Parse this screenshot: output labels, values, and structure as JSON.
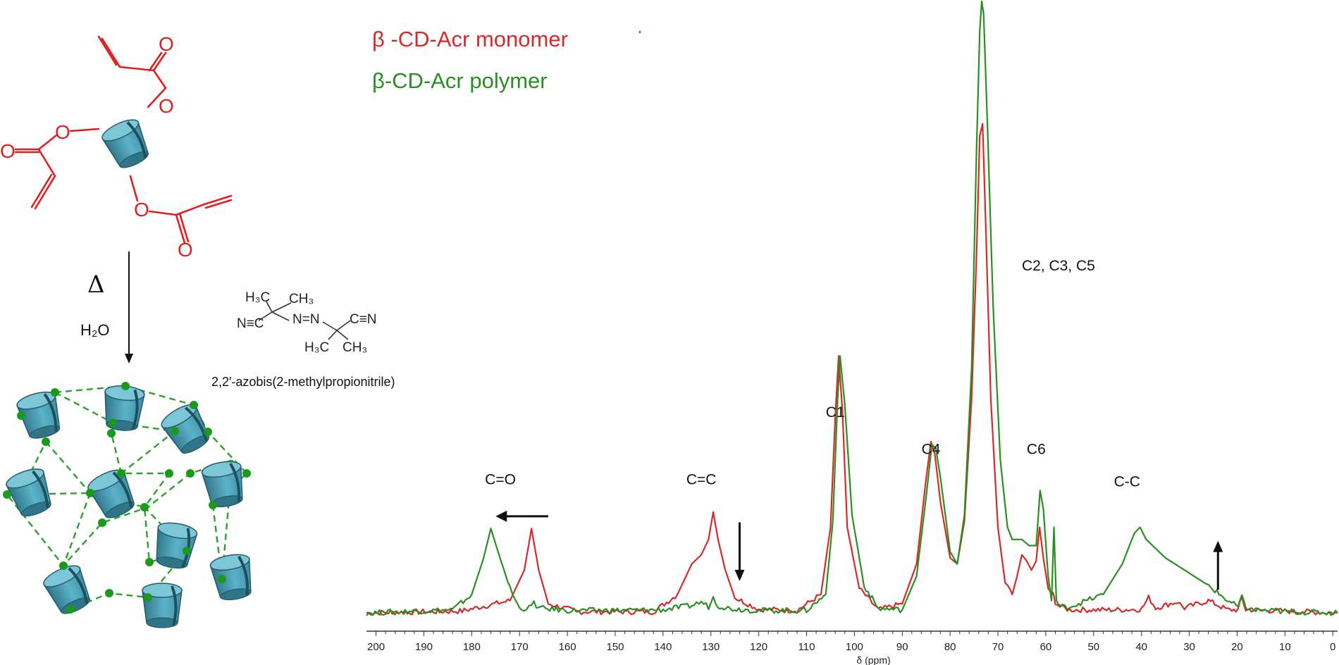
{
  "scheme": {
    "heat_symbol": "Δ",
    "solvent": "H₂O",
    "initiator_name": "2,2′-azobis(2-methylpropionitrile)",
    "initiator_formula": {
      "top_left": "H₃C",
      "top_right": "CH₃",
      "left": "N≡C",
      "azo": "N=N",
      "right": "C≡N",
      "bottom_left": "H₃C",
      "bottom_right": "CH₃"
    },
    "colors": {
      "monomer_structure": "#e02020",
      "cyclodextrin": "#4a9db5",
      "crosslink": "#2ca02c"
    }
  },
  "chart_data": {
    "type": "line",
    "xlabel": "δ (ppm)",
    "xlim": [
      202,
      -1
    ],
    "x_reversed": true,
    "xticks": [
      200,
      190,
      180,
      170,
      160,
      150,
      140,
      130,
      120,
      110,
      100,
      90,
      80,
      70,
      60,
      50,
      40,
      30,
      20,
      10,
      0
    ],
    "ylim": [
      0,
      1.0
    ],
    "grid": false,
    "legend_position": "top-left",
    "series": [
      {
        "name": "β -CD-Acr monomer",
        "color": "#d42a2a",
        "x": [
          202,
          182,
          178,
          172,
          169,
          167.5,
          166,
          164,
          158,
          142,
          137,
          134,
          132,
          130.5,
          129.5,
          128.5,
          127,
          125,
          120,
          112,
          107,
          105,
          104,
          103.3,
          102.5,
          101.5,
          99,
          95,
          90,
          87,
          85,
          84,
          83.2,
          82,
          80,
          78.5,
          77,
          75.5,
          74.5,
          73.8,
          73.2,
          72.5,
          71.5,
          70,
          68.5,
          67,
          66,
          65,
          64,
          63,
          62,
          61.3,
          60.5,
          59.5,
          58.5,
          58,
          57,
          55,
          45,
          40,
          38.5,
          37,
          34,
          32.5,
          31,
          26,
          22,
          19.8,
          19,
          18.2,
          17,
          10,
          -1
        ],
        "y": [
          0.0,
          0.003,
          0.01,
          0.02,
          0.07,
          0.138,
          0.07,
          0.015,
          0.002,
          0.002,
          0.03,
          0.08,
          0.095,
          0.12,
          0.165,
          0.12,
          0.07,
          0.025,
          0.006,
          0.004,
          0.03,
          0.14,
          0.32,
          0.42,
          0.33,
          0.14,
          0.04,
          0.005,
          0.015,
          0.08,
          0.22,
          0.28,
          0.26,
          0.18,
          0.09,
          0.08,
          0.15,
          0.35,
          0.58,
          0.78,
          0.8,
          0.62,
          0.35,
          0.14,
          0.05,
          0.03,
          0.06,
          0.095,
          0.085,
          0.07,
          0.085,
          0.14,
          0.09,
          0.04,
          0.03,
          0.018,
          0.01,
          0.005,
          0.005,
          0.006,
          0.025,
          0.008,
          0.015,
          0.018,
          0.008,
          0.02,
          0.005,
          0.005,
          0.025,
          0.005,
          0.005,
          0.003,
          0.0
        ]
      },
      {
        "name": "β-CD-Acr polymer",
        "color": "#2a8f22",
        "x": [
          202,
          184,
          180,
          177.5,
          176,
          174.5,
          172,
          170,
          168,
          167,
          166,
          160,
          150,
          140,
          134,
          132,
          130.5,
          129.5,
          128.5,
          126,
          120,
          110,
          106,
          104.5,
          103.5,
          103,
          102,
          100.5,
          98,
          95,
          90,
          87,
          85,
          83.8,
          83,
          82,
          80,
          78.5,
          77,
          75.5,
          74.5,
          73.8,
          73.4,
          73,
          72.2,
          71,
          69.5,
          68,
          67,
          65,
          63.5,
          62,
          61.2,
          60.5,
          59.5,
          58.8,
          58.3,
          57.8,
          57,
          55,
          48,
          44,
          41.5,
          40.3,
          39,
          35,
          30,
          26,
          22,
          19.8,
          19,
          18.2,
          17,
          10,
          -1
        ],
        "y": [
          0.0,
          0.005,
          0.03,
          0.09,
          0.138,
          0.1,
          0.04,
          0.007,
          0.008,
          0.016,
          0.008,
          0.004,
          0.004,
          0.005,
          0.012,
          0.018,
          0.01,
          0.025,
          0.012,
          0.007,
          0.004,
          0.004,
          0.03,
          0.15,
          0.35,
          0.42,
          0.34,
          0.16,
          0.045,
          0.007,
          0.005,
          0.06,
          0.19,
          0.275,
          0.27,
          0.22,
          0.1,
          0.08,
          0.16,
          0.4,
          0.75,
          0.95,
          1.0,
          0.98,
          0.8,
          0.5,
          0.25,
          0.14,
          0.12,
          0.12,
          0.11,
          0.11,
          0.2,
          0.17,
          0.06,
          0.02,
          0.14,
          0.02,
          0.01,
          0.01,
          0.03,
          0.08,
          0.13,
          0.14,
          0.12,
          0.09,
          0.065,
          0.045,
          0.02,
          0.01,
          0.025,
          0.01,
          0.005,
          0.002,
          0.0
        ]
      }
    ],
    "annotations": [
      {
        "text": "C=O",
        "x": 174,
        "y": 0.21
      },
      {
        "text": "C=C",
        "x": 132,
        "y": 0.21
      },
      {
        "text": "C1",
        "x": 104,
        "y": 0.32
      },
      {
        "text": "C4",
        "x": 84,
        "y": 0.26
      },
      {
        "text": "C2, C3, C5",
        "x": 65,
        "y": 0.56
      },
      {
        "text": "C6",
        "x": 62,
        "y": 0.26
      },
      {
        "text": "C-C",
        "x": 43,
        "y": 0.207
      }
    ],
    "arrows": [
      {
        "direction": "left",
        "x_from": 164,
        "x_to": 175,
        "y": 0.158
      },
      {
        "direction": "down",
        "x": 124,
        "y_from": 0.148,
        "y_to": 0.052
      },
      {
        "direction": "up",
        "x": 24,
        "y_from": 0.038,
        "y_to": 0.118
      }
    ]
  }
}
